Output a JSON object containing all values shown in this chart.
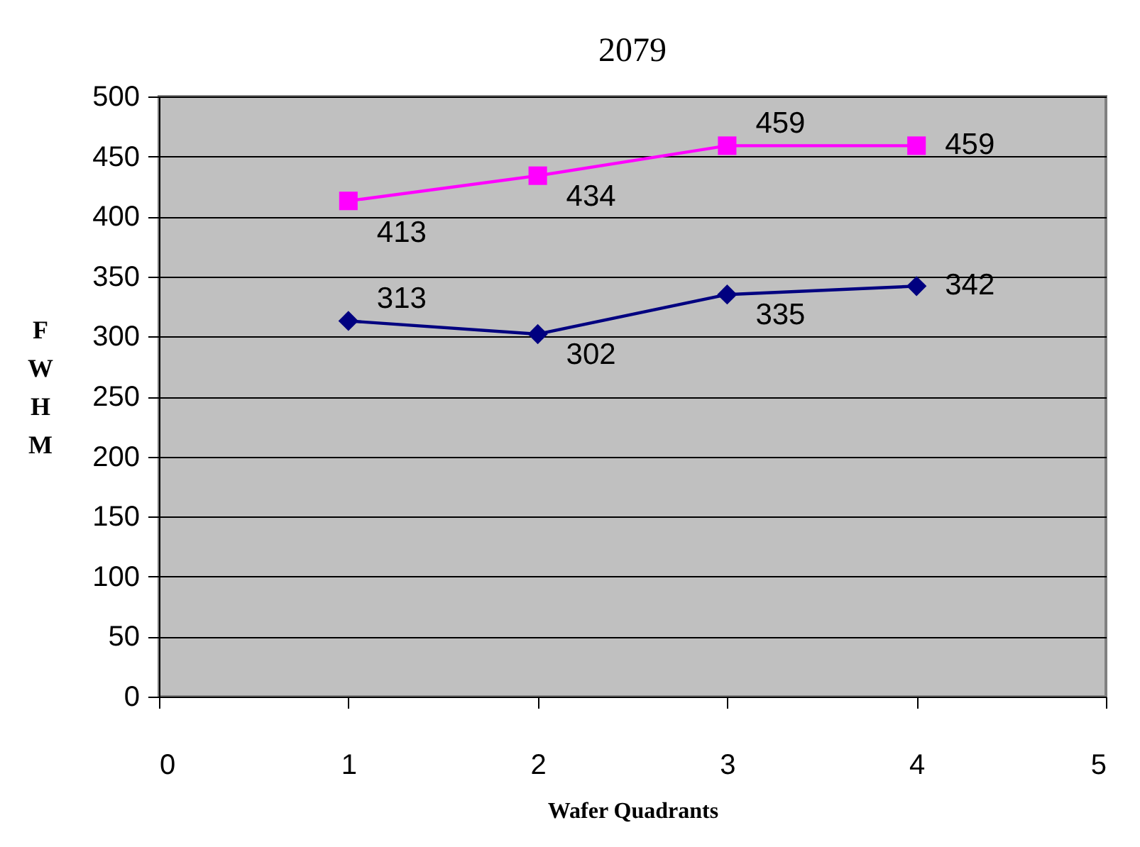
{
  "chart_data": {
    "type": "line",
    "title": "2079",
    "xlabel": "Wafer Quadrants",
    "ylabel": "FWHM",
    "x": [
      1,
      2,
      3,
      4
    ],
    "series": [
      {
        "color": "#ff00ff",
        "marker": "square",
        "values": [
          413,
          434,
          459,
          459
        ]
      },
      {
        "color": "#000080",
        "marker": "diamond",
        "values": [
          313,
          302,
          335,
          342
        ]
      }
    ],
    "xlim": [
      0,
      5
    ],
    "xticks": [
      0,
      1,
      2,
      3,
      4,
      5
    ],
    "ylim": [
      0,
      500
    ],
    "yticks": [
      0,
      50,
      100,
      150,
      200,
      250,
      300,
      350,
      400,
      450,
      500
    ],
    "grid": "y",
    "data_labels": true
  }
}
